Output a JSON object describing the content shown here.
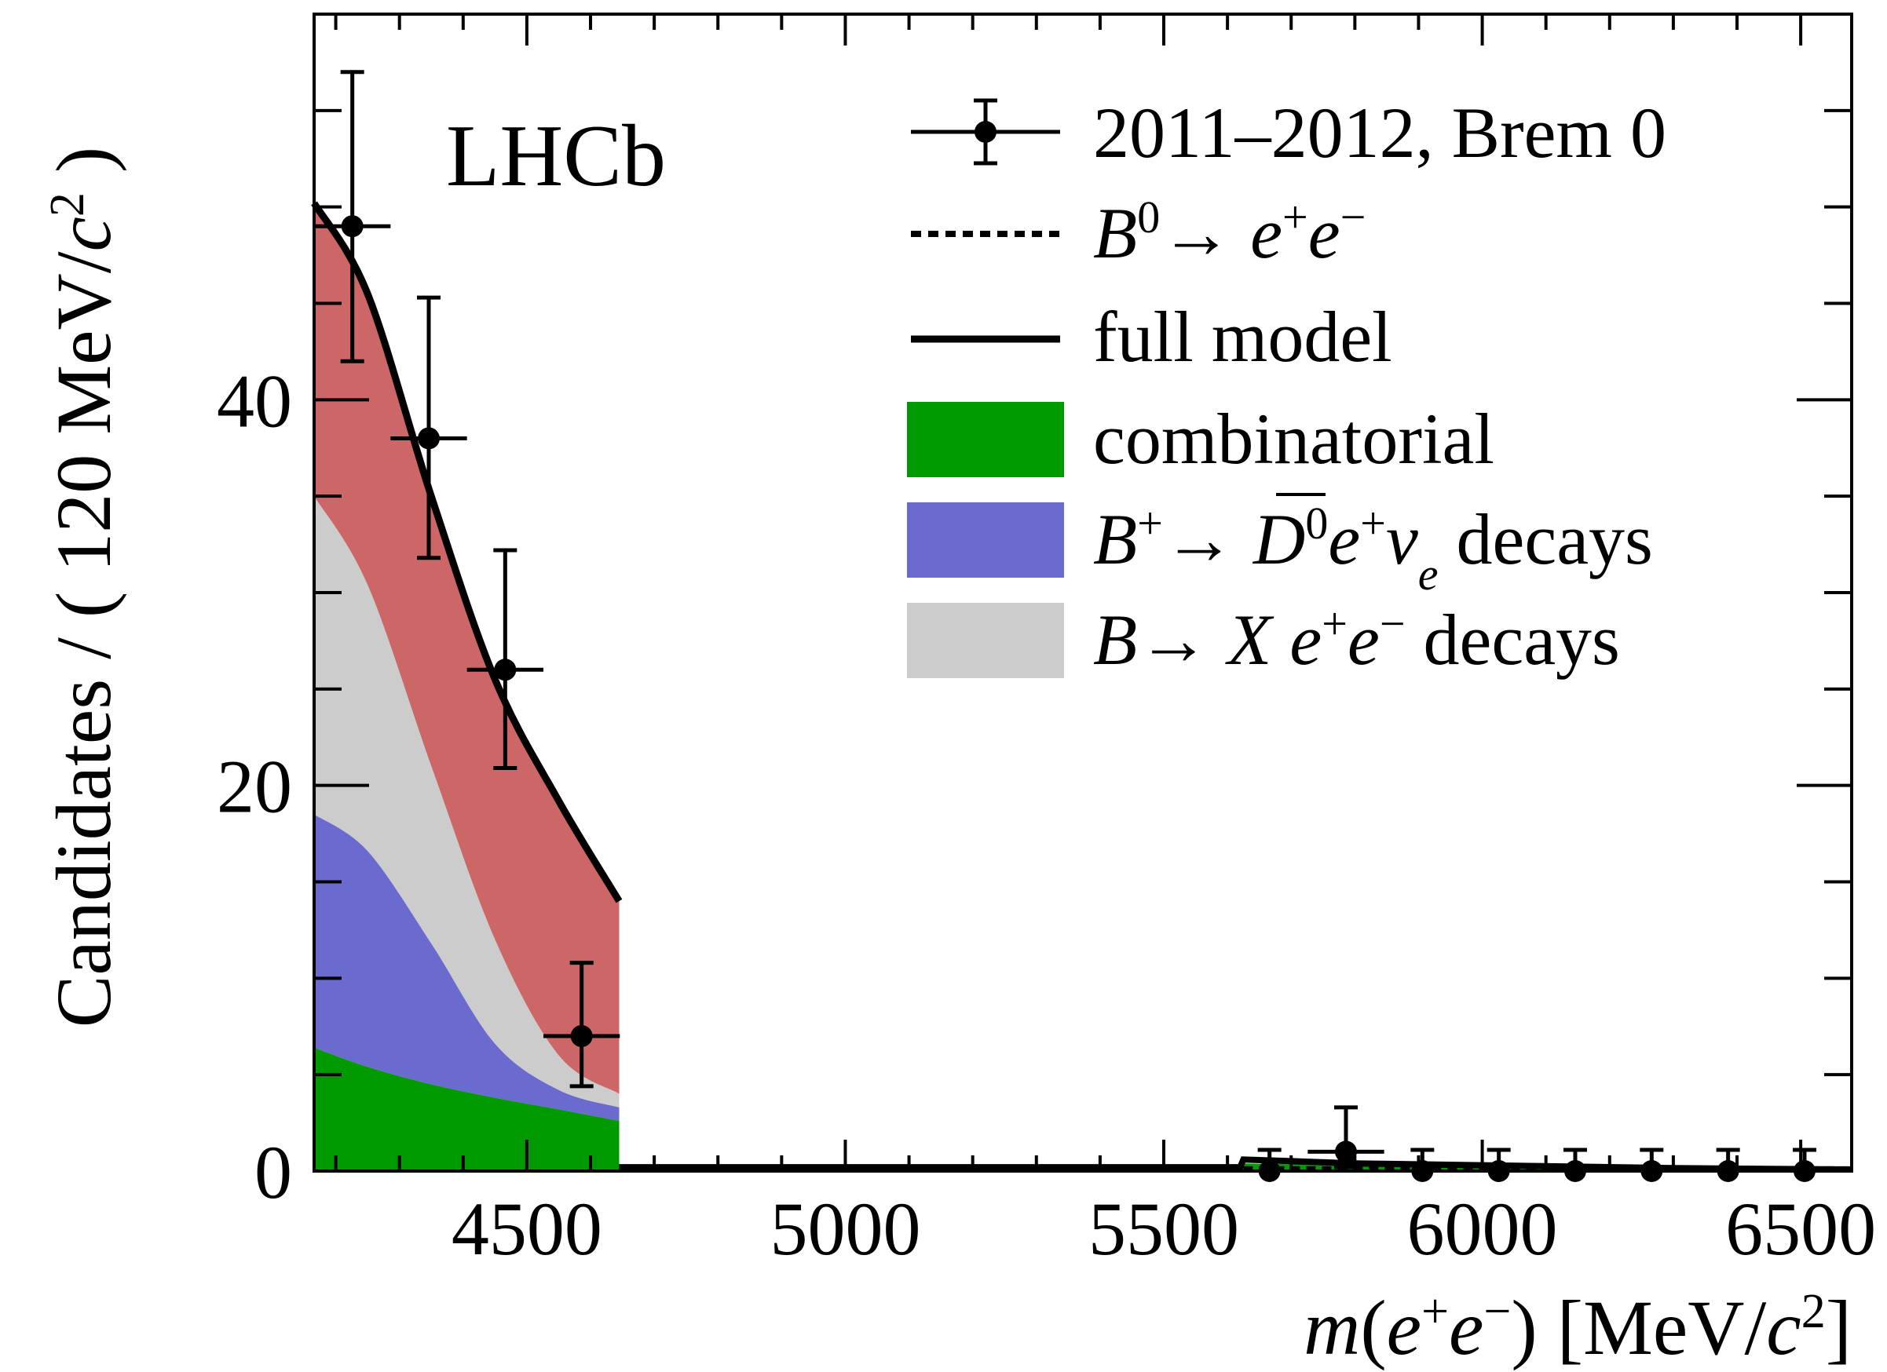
{
  "chart_data": {
    "type": "area",
    "title": "",
    "annotation": "LHCb",
    "xlabel": "m(e⁺e⁻) [MeV/c²]",
    "ylabel": "Candidates / ( 120 MeV/c² )",
    "xlim": [
      4166,
      6580
    ],
    "ylim": [
      0,
      60
    ],
    "x_ticks": [
      4500,
      5000,
      5500,
      6000,
      6500
    ],
    "x_tick_labels": [
      "4500",
      "5000",
      "5500",
      "6000",
      "6500"
    ],
    "y_ticks": [
      0,
      20,
      40
    ],
    "y_tick_labels": [
      "0",
      "20",
      "40"
    ],
    "grid": false,
    "legend_position": "top-right",
    "legend": [
      {
        "label": "2011–2012, Brem 0",
        "kind": "points"
      },
      {
        "label": "B⁰→ e⁺e⁻",
        "kind": "dashed-line"
      },
      {
        "label": "full model",
        "kind": "line"
      },
      {
        "label": "combinatorial",
        "kind": "fill",
        "color": "#009900"
      },
      {
        "label": "B⁺→ D̄⁰e⁺νₑ decays",
        "kind": "fill",
        "color": "#6a6acf"
      },
      {
        "label": "B→ Xe⁺e⁻ decays",
        "kind": "fill",
        "color": "#cccccc"
      }
    ],
    "colors": {
      "combinatorial": "#009900",
      "semileptonic": "#6a6acf",
      "partially_reconstructed": "#cccccc",
      "other_background": "#cd6666",
      "model_line": "#000000"
    },
    "data_points": [
      {
        "x": 4226,
        "y": 49.0,
        "xerr": 60,
        "yerr_low": 7.0,
        "yerr_high": 8.0
      },
      {
        "x": 4346,
        "y": 38.0,
        "xerr": 60,
        "yerr_low": 6.2,
        "yerr_high": 7.3
      },
      {
        "x": 4466,
        "y": 26.0,
        "xerr": 60,
        "yerr_low": 5.1,
        "yerr_high": 6.2
      },
      {
        "x": 4586,
        "y": 7.0,
        "xerr": 60,
        "yerr_low": 2.6,
        "yerr_high": 3.8
      },
      {
        "x": 5666,
        "y": 0.0,
        "xerr": 0,
        "yerr_low": 0,
        "yerr_high": 1.1
      },
      {
        "x": 5786,
        "y": 1.0,
        "xerr": 60,
        "yerr_low": 0.8,
        "yerr_high": 2.3
      },
      {
        "x": 5906,
        "y": 0.0,
        "xerr": 0,
        "yerr_low": 0,
        "yerr_high": 1.1
      },
      {
        "x": 6026,
        "y": 0.0,
        "xerr": 0,
        "yerr_low": 0,
        "yerr_high": 1.1
      },
      {
        "x": 6146,
        "y": 0.0,
        "xerr": 0,
        "yerr_low": 0,
        "yerr_high": 1.1
      },
      {
        "x": 6266,
        "y": 0.0,
        "xerr": 0,
        "yerr_low": 0,
        "yerr_high": 1.1
      },
      {
        "x": 6386,
        "y": 0.0,
        "xerr": 0,
        "yerr_low": 0,
        "yerr_high": 1.1
      },
      {
        "x": 6506,
        "y": 0.0,
        "xerr": 0,
        "yerr_low": 0,
        "yerr_high": 1.1
      }
    ],
    "stack_low_region": {
      "x": [
        4166,
        4250,
        4350,
        4450,
        4550,
        4645
      ],
      "combinatorial": [
        6.4,
        5.4,
        4.5,
        3.8,
        3.2,
        2.6
      ],
      "semileptonic_cumulative": [
        18.5,
        16.6,
        11.8,
        6.6,
        4.2,
        3.3
      ],
      "partially_reconstructed_cumulative": [
        35.0,
        30.4,
        21.0,
        12.0,
        6.0,
        4.0
      ],
      "full_model": [
        50.2,
        45.5,
        35.0,
        25.5,
        19.2,
        14.0
      ]
    },
    "stack_high_region": {
      "x": [
        4645,
        5000,
        5620,
        5625,
        5800,
        6000,
        6300,
        6580
      ],
      "combinatorial": [
        0.15,
        0.15,
        0.15,
        0.4,
        0.3,
        0.2,
        0.1,
        0.05
      ],
      "full_model": [
        0.2,
        0.2,
        0.2,
        0.6,
        0.4,
        0.3,
        0.15,
        0.08
      ]
    }
  }
}
